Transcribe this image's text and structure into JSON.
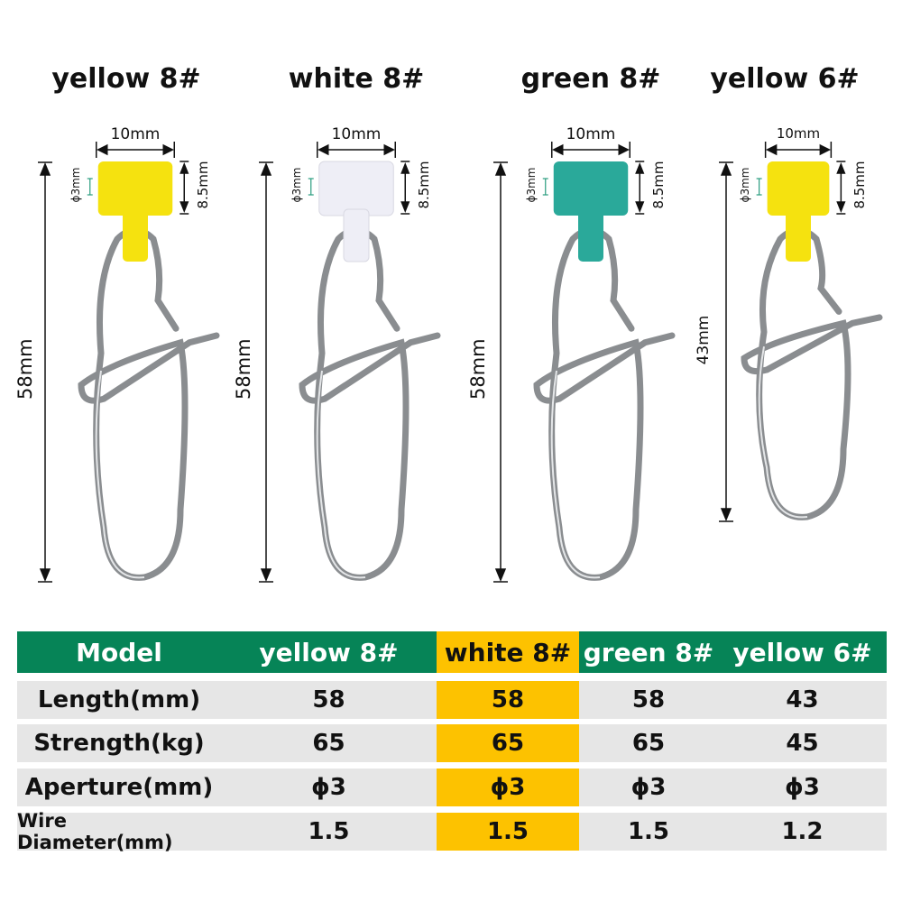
{
  "products": [
    {
      "title": "yellow 8#",
      "color": "#f5e20f",
      "width_label": "10mm",
      "hole_label": "ϕ3mm",
      "height_label": "8.5mm",
      "length_label": "58mm"
    },
    {
      "title": "white 8#",
      "color": "#eeeef6",
      "width_label": "10mm",
      "hole_label": "ϕ3mm",
      "height_label": "8.5mm",
      "length_label": "58mm"
    },
    {
      "title": "green 8#",
      "color": "#2aa99a",
      "width_label": "10mm",
      "hole_label": "ϕ3mm",
      "height_label": "8.5mm",
      "length_label": "58mm"
    },
    {
      "title": "yellow 6#",
      "color": "#f5e20f",
      "width_label": "10mm",
      "hole_label": "ϕ3mm",
      "height_label": "8.5mm",
      "length_label": "43mm"
    }
  ],
  "table": {
    "header": [
      "Model",
      "yellow 8#",
      "white 8#",
      "green 8#",
      "yellow 6#"
    ],
    "rows": [
      [
        "Length(mm)",
        "58",
        "58",
        "58",
        "43"
      ],
      [
        "Strength(kg)",
        "65",
        "65",
        "65",
        "45"
      ],
      [
        "Aperture(mm)",
        "ϕ3",
        "ϕ3",
        "ϕ3",
        "ϕ3"
      ],
      [
        "Wire Diameter(mm)",
        "1.5",
        "1.5",
        "1.5",
        "1.2"
      ]
    ],
    "header_color": "#068457",
    "highlight_color": "#fdc200",
    "row_color": "#e6e6e6"
  }
}
